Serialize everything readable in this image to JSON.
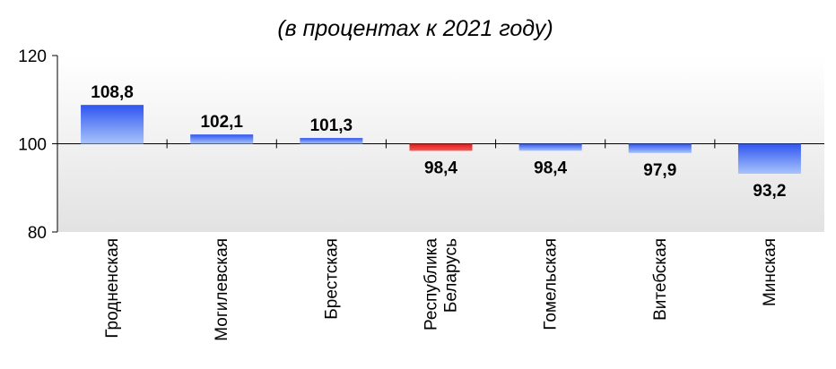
{
  "chart_data": {
    "type": "bar",
    "title": "",
    "subtitle": "(в процентах к 2021 году)",
    "xlabel": "",
    "ylabel": "",
    "baseline": 100,
    "ylim": [
      80,
      120
    ],
    "yticks": [
      "80",
      "100",
      "120"
    ],
    "ytick_values": [
      80,
      100,
      120
    ],
    "categories": [
      [
        "Гродненская"
      ],
      [
        "Могилевская"
      ],
      [
        "Брестская"
      ],
      [
        "Республика",
        "Беларусь"
      ],
      [
        "Гомельская"
      ],
      [
        "Витебская"
      ],
      [
        "Минская"
      ]
    ],
    "values": [
      108.8,
      102.1,
      101.3,
      98.4,
      98.4,
      97.9,
      93.2
    ],
    "value_labels": [
      "108,8",
      "102,1",
      "101,3",
      "98,4",
      "98,4",
      "97,9",
      "93,2"
    ],
    "highlight_index": 3,
    "grid": false,
    "legend": "none",
    "colors": {
      "bar_top": "#2f55f0",
      "bar_bottom": "#a8c4fb",
      "highlight_top": "#e01818",
      "highlight_bottom": "#f45a5a",
      "plot_bg_top": "#ffffff",
      "plot_bg_bottom": "#e2e2e2",
      "axis": "#000000"
    }
  }
}
